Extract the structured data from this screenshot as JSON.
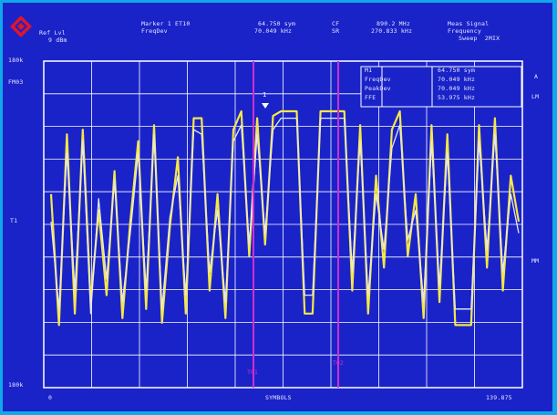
{
  "header": {
    "ref_lvl_label": "Ref Lvl",
    "ref_lvl_value": "9 dBm",
    "marker_label": "Marker 1 ET10",
    "marker_sub": "FreqDev",
    "marker_time": "64.750 sym",
    "marker_freq": "70.049 kHz",
    "cf_label": "CF",
    "sr_label": "SR",
    "cf_value": "890.2 MHz",
    "sr_value": "270.833 kHz",
    "meas_signal": "Meas Signal",
    "frequency": "Frequency",
    "sweep_mode": "Sweep  2MIX"
  },
  "y_axis": {
    "top": "180k",
    "top_sub": "FM03",
    "mid": "T1",
    "bottom": "180k"
  },
  "x_axis": {
    "start": "0",
    "center": "SYMBOLS",
    "end": "139.875"
  },
  "right_side": {
    "a_label": "A",
    "lm_label": "LM",
    "mm_label": "MM"
  },
  "marker_box": {
    "labels": [
      "M1",
      "FreqDev",
      "PeakDev",
      "FFE"
    ],
    "values": [
      "64.750 sym",
      "70.049 kHz",
      "70.049 kHz",
      "53.975 kHz"
    ]
  },
  "marker_vlines": {
    "label_left": "T01",
    "label_right": "T02"
  },
  "marker_point_label": "1",
  "chart_data": {
    "type": "line",
    "x_range": [
      0,
      139.875
    ],
    "x_unit": "symbols",
    "series": [
      {
        "name": "",
        "color": "#f5e64a",
        "values": [
          0.62,
          0.05,
          0.88,
          0.1,
          0.9,
          0.15,
          0.55,
          0.18,
          0.72,
          0.08,
          0.5,
          0.85,
          0.12,
          0.92,
          0.06,
          0.48,
          0.78,
          0.1,
          0.95,
          0.95,
          0.2,
          0.62,
          0.08,
          0.9,
          0.98,
          0.35,
          0.95,
          0.4,
          0.96,
          0.98,
          0.98,
          0.98,
          0.1,
          0.1,
          0.98,
          0.98,
          0.98,
          0.98,
          0.2,
          0.92,
          0.1,
          0.7,
          0.3,
          0.9,
          0.98,
          0.35,
          0.62,
          0.08,
          0.92,
          0.15,
          0.88,
          0.05,
          0.05,
          0.05,
          0.92,
          0.3,
          0.95,
          0.2,
          0.7,
          0.5
        ]
      },
      {
        "name": "",
        "color": "#e8e8e8",
        "values": [
          0.5,
          0.12,
          0.8,
          0.2,
          0.85,
          0.1,
          0.6,
          0.25,
          0.68,
          0.15,
          0.45,
          0.8,
          0.2,
          0.88,
          0.12,
          0.52,
          0.7,
          0.18,
          0.9,
          0.88,
          0.28,
          0.55,
          0.15,
          0.85,
          0.92,
          0.4,
          0.88,
          0.45,
          0.9,
          0.95,
          0.95,
          0.95,
          0.18,
          0.18,
          0.95,
          0.95,
          0.95,
          0.95,
          0.28,
          0.85,
          0.18,
          0.62,
          0.38,
          0.82,
          0.92,
          0.42,
          0.55,
          0.15,
          0.85,
          0.22,
          0.8,
          0.12,
          0.12,
          0.12,
          0.85,
          0.38,
          0.88,
          0.28,
          0.62,
          0.45
        ]
      }
    ]
  }
}
